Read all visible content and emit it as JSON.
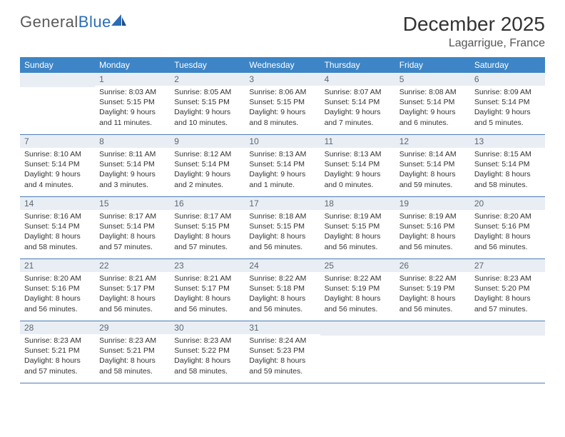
{
  "logo": {
    "text_general": "General",
    "text_blue": "Blue"
  },
  "title": "December 2025",
  "location": "Lagarrigue, France",
  "colors": {
    "header_bg": "#3d85c6",
    "header_text": "#ffffff",
    "daynum_bg": "#e9eef4",
    "daynum_text": "#5b6773",
    "rule": "#4a7db5",
    "body_text": "#333333",
    "logo_gray": "#5a5a5a",
    "logo_blue": "#2a6db5"
  },
  "weekdays": [
    "Sunday",
    "Monday",
    "Tuesday",
    "Wednesday",
    "Thursday",
    "Friday",
    "Saturday"
  ],
  "weeks": [
    [
      null,
      {
        "n": "1",
        "sr": "8:03 AM",
        "ss": "5:15 PM",
        "dl": "9 hours and 11 minutes."
      },
      {
        "n": "2",
        "sr": "8:05 AM",
        "ss": "5:15 PM",
        "dl": "9 hours and 10 minutes."
      },
      {
        "n": "3",
        "sr": "8:06 AM",
        "ss": "5:15 PM",
        "dl": "9 hours and 8 minutes."
      },
      {
        "n": "4",
        "sr": "8:07 AM",
        "ss": "5:14 PM",
        "dl": "9 hours and 7 minutes."
      },
      {
        "n": "5",
        "sr": "8:08 AM",
        "ss": "5:14 PM",
        "dl": "9 hours and 6 minutes."
      },
      {
        "n": "6",
        "sr": "8:09 AM",
        "ss": "5:14 PM",
        "dl": "9 hours and 5 minutes."
      }
    ],
    [
      {
        "n": "7",
        "sr": "8:10 AM",
        "ss": "5:14 PM",
        "dl": "9 hours and 4 minutes."
      },
      {
        "n": "8",
        "sr": "8:11 AM",
        "ss": "5:14 PM",
        "dl": "9 hours and 3 minutes."
      },
      {
        "n": "9",
        "sr": "8:12 AM",
        "ss": "5:14 PM",
        "dl": "9 hours and 2 minutes."
      },
      {
        "n": "10",
        "sr": "8:13 AM",
        "ss": "5:14 PM",
        "dl": "9 hours and 1 minute."
      },
      {
        "n": "11",
        "sr": "8:13 AM",
        "ss": "5:14 PM",
        "dl": "9 hours and 0 minutes."
      },
      {
        "n": "12",
        "sr": "8:14 AM",
        "ss": "5:14 PM",
        "dl": "8 hours and 59 minutes."
      },
      {
        "n": "13",
        "sr": "8:15 AM",
        "ss": "5:14 PM",
        "dl": "8 hours and 58 minutes."
      }
    ],
    [
      {
        "n": "14",
        "sr": "8:16 AM",
        "ss": "5:14 PM",
        "dl": "8 hours and 58 minutes."
      },
      {
        "n": "15",
        "sr": "8:17 AM",
        "ss": "5:14 PM",
        "dl": "8 hours and 57 minutes."
      },
      {
        "n": "16",
        "sr": "8:17 AM",
        "ss": "5:15 PM",
        "dl": "8 hours and 57 minutes."
      },
      {
        "n": "17",
        "sr": "8:18 AM",
        "ss": "5:15 PM",
        "dl": "8 hours and 56 minutes."
      },
      {
        "n": "18",
        "sr": "8:19 AM",
        "ss": "5:15 PM",
        "dl": "8 hours and 56 minutes."
      },
      {
        "n": "19",
        "sr": "8:19 AM",
        "ss": "5:16 PM",
        "dl": "8 hours and 56 minutes."
      },
      {
        "n": "20",
        "sr": "8:20 AM",
        "ss": "5:16 PM",
        "dl": "8 hours and 56 minutes."
      }
    ],
    [
      {
        "n": "21",
        "sr": "8:20 AM",
        "ss": "5:16 PM",
        "dl": "8 hours and 56 minutes."
      },
      {
        "n": "22",
        "sr": "8:21 AM",
        "ss": "5:17 PM",
        "dl": "8 hours and 56 minutes."
      },
      {
        "n": "23",
        "sr": "8:21 AM",
        "ss": "5:17 PM",
        "dl": "8 hours and 56 minutes."
      },
      {
        "n": "24",
        "sr": "8:22 AM",
        "ss": "5:18 PM",
        "dl": "8 hours and 56 minutes."
      },
      {
        "n": "25",
        "sr": "8:22 AM",
        "ss": "5:19 PM",
        "dl": "8 hours and 56 minutes."
      },
      {
        "n": "26",
        "sr": "8:22 AM",
        "ss": "5:19 PM",
        "dl": "8 hours and 56 minutes."
      },
      {
        "n": "27",
        "sr": "8:23 AM",
        "ss": "5:20 PM",
        "dl": "8 hours and 57 minutes."
      }
    ],
    [
      {
        "n": "28",
        "sr": "8:23 AM",
        "ss": "5:21 PM",
        "dl": "8 hours and 57 minutes."
      },
      {
        "n": "29",
        "sr": "8:23 AM",
        "ss": "5:21 PM",
        "dl": "8 hours and 58 minutes."
      },
      {
        "n": "30",
        "sr": "8:23 AM",
        "ss": "5:22 PM",
        "dl": "8 hours and 58 minutes."
      },
      {
        "n": "31",
        "sr": "8:24 AM",
        "ss": "5:23 PM",
        "dl": "8 hours and 59 minutes."
      },
      null,
      null,
      null
    ]
  ],
  "labels": {
    "sunrise": "Sunrise:",
    "sunset": "Sunset:",
    "daylight": "Daylight:"
  }
}
